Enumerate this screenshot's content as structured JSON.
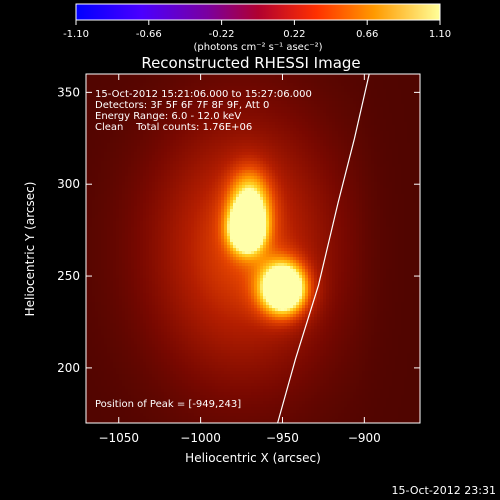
{
  "colorbar": {
    "ticks": [
      "-1.10",
      "-0.66",
      "-0.22",
      "0.22",
      "0.66",
      "1.10"
    ],
    "unit_label": "(photons cm⁻² s⁻¹ asec⁻²)"
  },
  "title": "Reconstructed RHESSI Image",
  "annotation_lines": [
    "15-Oct-2012 15:21:06.000 to 15:27:06.000",
    "Detectors: 3F 5F 6F 7F 8F 9F, Att 0",
    "Energy Range: 6.0 - 12.0 keV",
    "Clean    Total counts: 1.76E+06"
  ],
  "peak_text": "Position of Peak = [-949,243]",
  "footer_timestamp": "15-Oct-2012 23:31",
  "chart_data": {
    "type": "heatmap",
    "title": "Reconstructed RHESSI Image",
    "xlabel": "Heliocentric X (arcsec)",
    "ylabel": "Heliocentric Y (arcsec)",
    "xlim": [
      -1070,
      -866
    ],
    "ylim": [
      170,
      360
    ],
    "x_ticks": [
      -1050,
      -1000,
      -950,
      -900
    ],
    "y_ticks": [
      200,
      250,
      300,
      350
    ],
    "colormap": "hot",
    "color_range": [
      -1.1,
      1.1
    ],
    "sources": [
      {
        "x": -970,
        "y": 288,
        "sigma_x": 9,
        "sigma_y": 14,
        "amp": 0.55
      },
      {
        "x": -972,
        "y": 275,
        "sigma_x": 7,
        "sigma_y": 8,
        "amp": 0.8
      },
      {
        "x": -949,
        "y": 243,
        "sigma_x": 10,
        "sigma_y": 10,
        "amp": 1.0
      }
    ],
    "limb_curve": [
      {
        "x": -953,
        "y": 170
      },
      {
        "x": -942,
        "y": 205
      },
      {
        "x": -928,
        "y": 245
      },
      {
        "x": -916,
        "y": 290
      },
      {
        "x": -906,
        "y": 325
      },
      {
        "x": -897,
        "y": 360
      }
    ],
    "peak": {
      "x": -949,
      "y": 243
    }
  }
}
